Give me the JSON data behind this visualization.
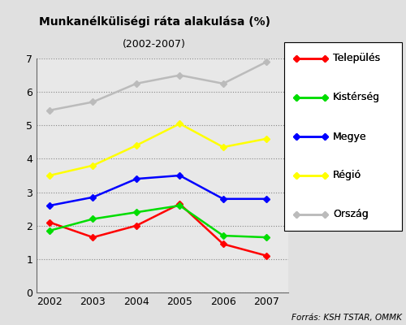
{
  "title_line1": "Munkanélküliségi ráta alakulása (%)",
  "title_line2": "(2002-2007)",
  "years": [
    2002,
    2003,
    2004,
    2005,
    2006,
    2007
  ],
  "series": {
    "Település": {
      "values": [
        2.1,
        1.65,
        2.0,
        2.65,
        1.45,
        1.1
      ],
      "color": "#ff0000",
      "marker": "D"
    },
    "Kistérség": {
      "values": [
        1.85,
        2.2,
        2.4,
        2.6,
        1.7,
        1.65
      ],
      "color": "#00dd00",
      "marker": "D"
    },
    "Megye": {
      "values": [
        2.6,
        2.85,
        3.4,
        3.5,
        2.8,
        2.8
      ],
      "color": "#0000ff",
      "marker": "D"
    },
    "Régió": {
      "values": [
        3.5,
        3.8,
        4.4,
        5.05,
        4.35,
        4.6
      ],
      "color": "#ffff00",
      "marker": "D"
    },
    "Ország": {
      "values": [
        5.45,
        5.7,
        6.25,
        6.5,
        6.25,
        6.9
      ],
      "color": "#bbbbbb",
      "marker": "D"
    }
  },
  "ylim": [
    0,
    7
  ],
  "yticks": [
    0,
    1,
    2,
    3,
    4,
    5,
    6,
    7
  ],
  "footnote": "Forrás: KSH TSTAR, OMMK",
  "background_color": "#e0e0e0",
  "plot_background_color": "#e8e8e8",
  "grid_color": "#888888",
  "legend_order": [
    "Település",
    "Kistérség",
    "Megye",
    "Régió",
    "Ország"
  ]
}
